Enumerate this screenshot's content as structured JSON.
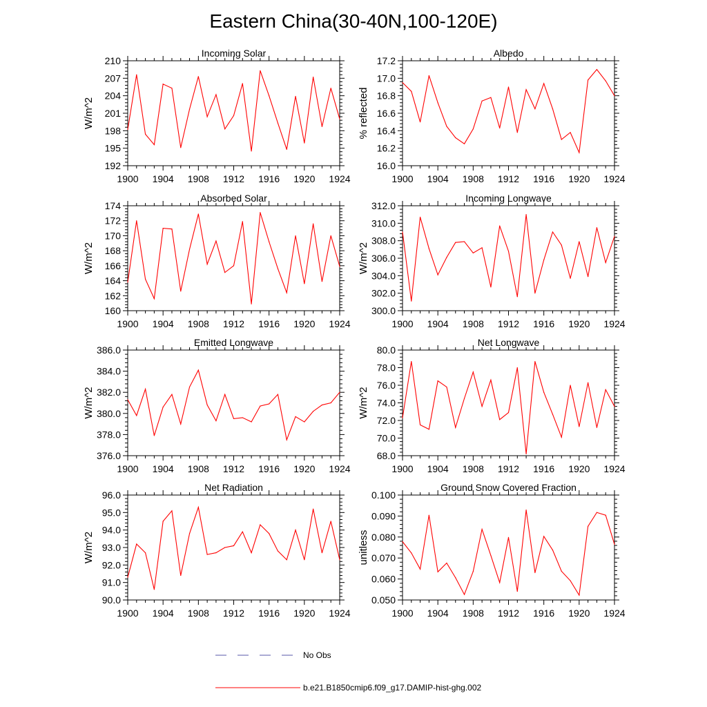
{
  "page": {
    "title": "Eastern China(30-40N,100-120E)"
  },
  "legend": {
    "placement": "bottom-center",
    "entries": [
      {
        "label": "No Obs",
        "color": "#5555aa",
        "style": "dashed"
      },
      {
        "label": "b.e21.B1850cmip6.f09_g17.DAMIP-hist-ghg.002",
        "color": "#ff0000",
        "style": "solid"
      }
    ]
  },
  "chart_data": [
    {
      "type": "line",
      "title": "Incoming Solar",
      "xlabel": "",
      "ylabel": "W/m^2",
      "xlim": [
        1900,
        1924
      ],
      "ylim": [
        192,
        210
      ],
      "xticks": [
        "1900",
        "1904",
        "1908",
        "1912",
        "1916",
        "1920",
        "1924"
      ],
      "yticks": [
        "192",
        "195",
        "198",
        "201",
        "204",
        "207",
        "210"
      ],
      "series": [
        {
          "color": "#ff0000",
          "x": [
            1900,
            1901,
            1902,
            1903,
            1904,
            1905,
            1906,
            1907,
            1908,
            1909,
            1910,
            1911,
            1912,
            1913,
            1914,
            1915,
            1916,
            1917,
            1918,
            1919,
            1920,
            1921,
            1922,
            1923,
            1924
          ],
          "y": [
            198.2,
            207.6,
            197.4,
            195.6,
            206.0,
            205.3,
            195.1,
            201.7,
            207.3,
            200.4,
            204.2,
            198.3,
            200.6,
            206.1,
            194.5,
            208.3,
            204.0,
            199.3,
            194.8,
            203.9,
            195.9,
            207.2,
            198.7,
            205.3,
            200.0
          ]
        }
      ]
    },
    {
      "type": "line",
      "title": "Albedo",
      "xlabel": "",
      "ylabel": "% reflected",
      "xlim": [
        1900,
        1924
      ],
      "ylim": [
        16.0,
        17.2
      ],
      "xticks": [
        "1900",
        "1904",
        "1908",
        "1912",
        "1916",
        "1920",
        "1924"
      ],
      "yticks": [
        "16.0",
        "16.2",
        "16.4",
        "16.6",
        "16.8",
        "17.0",
        "17.2"
      ],
      "series": [
        {
          "color": "#ff0000",
          "x": [
            1900,
            1901,
            1902,
            1903,
            1904,
            1905,
            1906,
            1907,
            1908,
            1909,
            1910,
            1911,
            1912,
            1913,
            1914,
            1915,
            1916,
            1917,
            1918,
            1919,
            1920,
            1921,
            1922,
            1923,
            1924
          ],
          "y": [
            16.95,
            16.85,
            16.5,
            17.03,
            16.72,
            16.45,
            16.32,
            16.25,
            16.42,
            16.74,
            16.78,
            16.43,
            16.9,
            16.38,
            16.87,
            16.65,
            16.94,
            16.65,
            16.3,
            16.38,
            16.15,
            16.98,
            17.1,
            16.97,
            16.8
          ]
        }
      ]
    },
    {
      "type": "line",
      "title": "Absorbed Solar",
      "xlabel": "",
      "ylabel": "W/m^2",
      "xlim": [
        1900,
        1924
      ],
      "ylim": [
        160,
        174
      ],
      "xticks": [
        "1900",
        "1904",
        "1908",
        "1912",
        "1916",
        "1920",
        "1924"
      ],
      "yticks": [
        "160",
        "162",
        "164",
        "166",
        "168",
        "170",
        "172",
        "174"
      ],
      "series": [
        {
          "color": "#ff0000",
          "x": [
            1900,
            1901,
            1902,
            1903,
            1904,
            1905,
            1906,
            1907,
            1908,
            1909,
            1910,
            1911,
            1912,
            1913,
            1914,
            1915,
            1916,
            1917,
            1918,
            1919,
            1920,
            1921,
            1922,
            1923,
            1924
          ],
          "y": [
            163.8,
            172.0,
            164.2,
            161.6,
            171.0,
            170.9,
            162.6,
            168.2,
            172.9,
            166.2,
            169.3,
            165.1,
            166.0,
            171.9,
            160.9,
            173.1,
            169.2,
            165.6,
            162.4,
            170.0,
            163.6,
            171.6,
            163.9,
            170.0,
            165.9
          ]
        }
      ]
    },
    {
      "type": "line",
      "title": "Incoming Longwave",
      "xlabel": "",
      "ylabel": "W/m^2",
      "xlim": [
        1900,
        1924
      ],
      "ylim": [
        300.0,
        312.0
      ],
      "xticks": [
        "1900",
        "1904",
        "1908",
        "1912",
        "1916",
        "1920",
        "1924"
      ],
      "yticks": [
        "300.0",
        "302.0",
        "304.0",
        "306.0",
        "308.0",
        "310.0",
        "312.0"
      ],
      "series": [
        {
          "color": "#ff0000",
          "x": [
            1900,
            1901,
            1902,
            1903,
            1904,
            1905,
            1906,
            1907,
            1908,
            1909,
            1910,
            1911,
            1912,
            1913,
            1914,
            1915,
            1916,
            1917,
            1918,
            1919,
            1920,
            1921,
            1922,
            1923,
            1924
          ],
          "y": [
            309.0,
            301.1,
            310.7,
            307.1,
            304.1,
            306.1,
            307.8,
            307.9,
            306.6,
            307.2,
            302.7,
            309.7,
            306.8,
            301.6,
            311.0,
            302.0,
            305.8,
            309.0,
            307.5,
            303.7,
            307.9,
            303.9,
            309.5,
            305.5,
            308.5
          ]
        }
      ]
    },
    {
      "type": "line",
      "title": "Emitted Longwave",
      "xlabel": "",
      "ylabel": "W/m^2",
      "xlim": [
        1900,
        1924
      ],
      "ylim": [
        376.0,
        386.0
      ],
      "xticks": [
        "1900",
        "1904",
        "1908",
        "1912",
        "1916",
        "1920",
        "1924"
      ],
      "yticks": [
        "376.0",
        "378.0",
        "380.0",
        "382.0",
        "384.0",
        "386.0"
      ],
      "series": [
        {
          "color": "#ff0000",
          "x": [
            1900,
            1901,
            1902,
            1903,
            1904,
            1905,
            1906,
            1907,
            1908,
            1909,
            1910,
            1911,
            1912,
            1913,
            1914,
            1915,
            1916,
            1917,
            1918,
            1919,
            1920,
            1921,
            1922,
            1923,
            1924
          ],
          "y": [
            381.3,
            379.8,
            382.3,
            377.9,
            380.6,
            381.8,
            379.0,
            382.5,
            384.1,
            380.8,
            379.3,
            381.8,
            379.5,
            379.6,
            379.2,
            380.7,
            380.9,
            381.8,
            377.5,
            379.7,
            379.2,
            380.2,
            380.8,
            381.0,
            382.0
          ]
        }
      ]
    },
    {
      "type": "line",
      "title": "Net Longwave",
      "xlabel": "",
      "ylabel": "W/m^2",
      "xlim": [
        1900,
        1924
      ],
      "ylim": [
        68.0,
        80.0
      ],
      "xticks": [
        "1900",
        "1904",
        "1908",
        "1912",
        "1916",
        "1920",
        "1924"
      ],
      "yticks": [
        "68.0",
        "70.0",
        "72.0",
        "74.0",
        "76.0",
        "78.0",
        "80.0"
      ],
      "series": [
        {
          "color": "#ff0000",
          "x": [
            1900,
            1901,
            1902,
            1903,
            1904,
            1905,
            1906,
            1907,
            1908,
            1909,
            1910,
            1911,
            1912,
            1913,
            1914,
            1915,
            1916,
            1917,
            1918,
            1919,
            1920,
            1921,
            1922,
            1923,
            1924
          ],
          "y": [
            72.3,
            78.7,
            71.5,
            71.0,
            76.5,
            75.8,
            71.2,
            74.5,
            77.5,
            73.6,
            76.6,
            72.1,
            72.9,
            78.0,
            68.2,
            78.7,
            75.2,
            72.7,
            70.1,
            76.0,
            71.3,
            76.3,
            71.2,
            75.5,
            73.6
          ]
        }
      ]
    },
    {
      "type": "line",
      "title": "Net Radiation",
      "xlabel": "",
      "ylabel": "W/m^2",
      "xlim": [
        1900,
        1924
      ],
      "ylim": [
        90.0,
        96.0
      ],
      "xticks": [
        "1900",
        "1904",
        "1908",
        "1912",
        "1916",
        "1920",
        "1924"
      ],
      "yticks": [
        "90.0",
        "91.0",
        "92.0",
        "93.0",
        "94.0",
        "95.0",
        "96.0"
      ],
      "series": [
        {
          "color": "#ff0000",
          "x": [
            1900,
            1901,
            1902,
            1903,
            1904,
            1905,
            1906,
            1907,
            1908,
            1909,
            1910,
            1911,
            1912,
            1913,
            1914,
            1915,
            1916,
            1917,
            1918,
            1919,
            1920,
            1921,
            1922,
            1923,
            1924
          ],
          "y": [
            91.3,
            93.2,
            92.7,
            90.6,
            94.5,
            95.1,
            91.4,
            93.8,
            95.3,
            92.6,
            92.7,
            93.0,
            93.1,
            93.9,
            92.7,
            94.3,
            93.8,
            92.8,
            92.3,
            94.0,
            92.3,
            95.2,
            92.7,
            94.5,
            92.3
          ]
        }
      ]
    },
    {
      "type": "line",
      "title": "Ground Snow Covered Fraction",
      "xlabel": "",
      "ylabel": "unitless",
      "xlim": [
        1900,
        1924
      ],
      "ylim": [
        0.05,
        0.1
      ],
      "xticks": [
        "1900",
        "1904",
        "1908",
        "1912",
        "1916",
        "1920",
        "1924"
      ],
      "yticks": [
        "0.050",
        "0.060",
        "0.070",
        "0.080",
        "0.090",
        "0.100"
      ],
      "series": [
        {
          "color": "#ff0000",
          "x": [
            1900,
            1901,
            1902,
            1903,
            1904,
            1905,
            1906,
            1907,
            1908,
            1909,
            1910,
            1911,
            1912,
            1913,
            1914,
            1915,
            1916,
            1917,
            1918,
            1919,
            1920,
            1921,
            1922,
            1923,
            1924
          ],
          "y": [
            0.0778,
            0.0724,
            0.0647,
            0.0904,
            0.0634,
            0.0676,
            0.0606,
            0.0526,
            0.0636,
            0.0837,
            0.0712,
            0.0583,
            0.0798,
            0.0541,
            0.0929,
            0.063,
            0.0803,
            0.0738,
            0.0637,
            0.0592,
            0.0523,
            0.0851,
            0.0917,
            0.0904,
            0.0765
          ]
        }
      ]
    }
  ]
}
